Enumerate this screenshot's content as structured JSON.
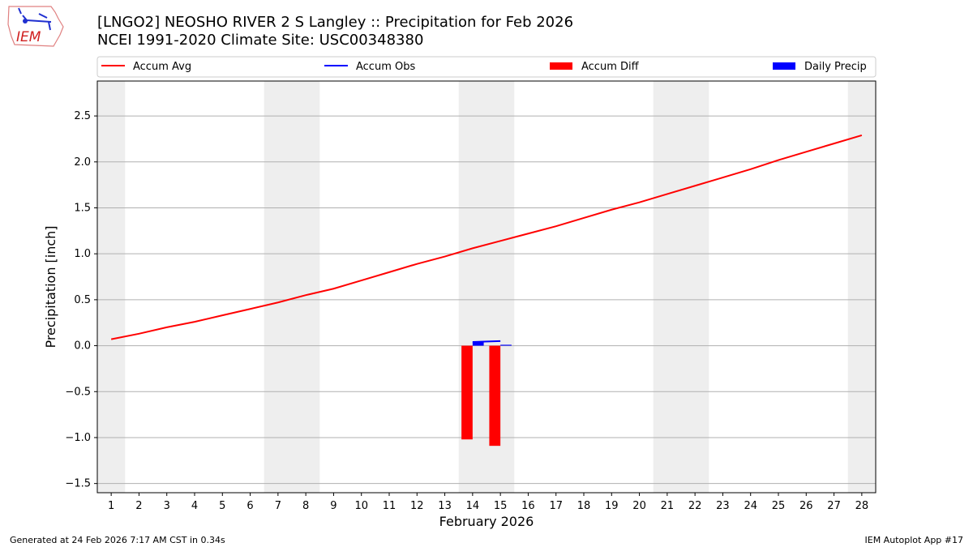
{
  "header": {
    "title": "[LNGO2] NEOSHO RIVER 2 S Langley :: Precipitation for Feb 2026",
    "subtitle": "NCEI 1991-2020 Climate Site: USC00348380",
    "logo_text": "IEM"
  },
  "footer": {
    "left": "Generated at 24 Feb 2026 7:17 AM CST in 0.34s",
    "right": "IEM Autoplot App #17"
  },
  "chart_data": {
    "type": "line",
    "xlabel": "February 2026",
    "ylabel": "Precipitation [inch]",
    "xlim": [
      0.5,
      28.5
    ],
    "ylim": [
      -1.6,
      2.88
    ],
    "yticks": [
      -1.5,
      -1.0,
      -0.5,
      0.0,
      0.5,
      1.0,
      1.5,
      2.0,
      2.5
    ],
    "ytick_labels": [
      "−1.5",
      "−1.0",
      "−0.5",
      "0.0",
      "0.5",
      "1.0",
      "1.5",
      "2.0",
      "2.5"
    ],
    "xticks": [
      1,
      2,
      3,
      4,
      5,
      6,
      7,
      8,
      9,
      10,
      11,
      12,
      13,
      14,
      15,
      16,
      17,
      18,
      19,
      20,
      21,
      22,
      23,
      24,
      25,
      26,
      27,
      28
    ],
    "grid": "horizontal",
    "legend_placement": "top",
    "weekend_shading": [
      [
        0.5,
        1.5
      ],
      [
        6.5,
        8.5
      ],
      [
        13.5,
        15.5
      ],
      [
        20.5,
        22.5
      ],
      [
        27.5,
        28.5
      ]
    ],
    "colors": {
      "accum_avg": "#ff0000",
      "accum_obs": "#0000ff",
      "accum_diff": "#ff0000",
      "daily_precip": "#0000ff",
      "weekend": "#eeeeee"
    },
    "series": [
      {
        "name": "Accum Avg",
        "type": "line",
        "x": [
          1,
          2,
          3,
          4,
          5,
          6,
          7,
          8,
          9,
          10,
          11,
          12,
          13,
          14,
          15,
          16,
          17,
          18,
          19,
          20,
          21,
          22,
          23,
          24,
          25,
          26,
          27,
          28
        ],
        "values": [
          0.07,
          0.13,
          0.2,
          0.26,
          0.33,
          0.4,
          0.47,
          0.55,
          0.62,
          0.71,
          0.8,
          0.89,
          0.97,
          1.06,
          1.14,
          1.22,
          1.3,
          1.39,
          1.48,
          1.56,
          1.65,
          1.74,
          1.83,
          1.92,
          2.02,
          2.11,
          2.2,
          2.29
        ]
      },
      {
        "name": "Accum Obs",
        "type": "line",
        "x": [
          14,
          15
        ],
        "values": [
          0.04,
          0.05
        ]
      },
      {
        "name": "Accum Diff",
        "type": "bar",
        "x": [
          14,
          15
        ],
        "values": [
          -1.02,
          -1.09
        ]
      },
      {
        "name": "Daily Precip",
        "type": "bar",
        "x": [
          14,
          15
        ],
        "values": [
          0.04,
          0.01
        ]
      }
    ]
  }
}
